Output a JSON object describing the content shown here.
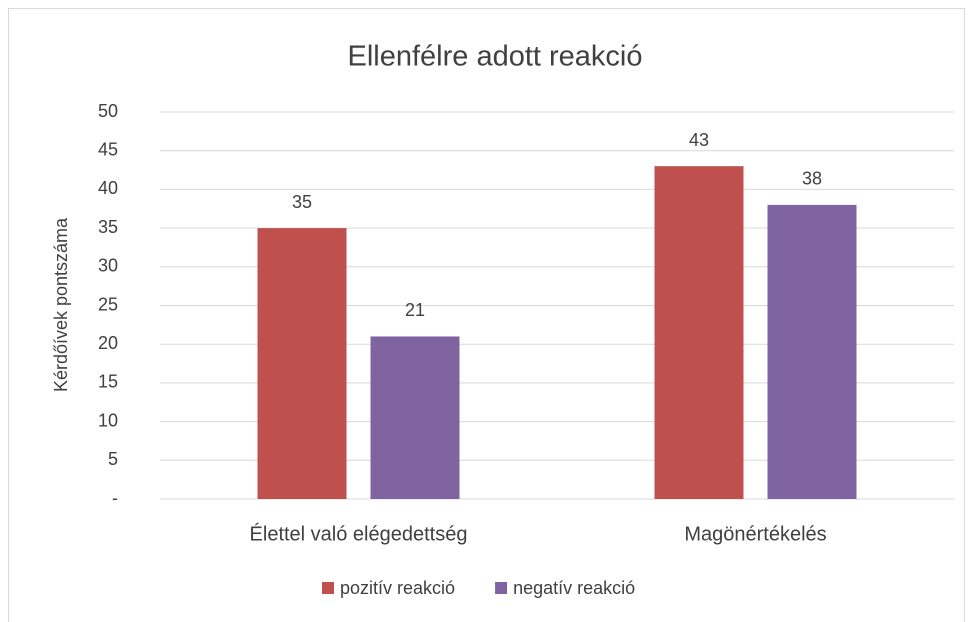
{
  "chart_data": {
    "type": "bar",
    "title": "Ellenfélre adott reakció",
    "y_label": "Kérdőívek pontszáma",
    "categories": [
      "Élettel való elégedettség",
      "Magönértékelés"
    ],
    "series": [
      {
        "name": "pozitív reakció",
        "color": "#c0504d",
        "values": [
          35,
          43
        ]
      },
      {
        "name": "negatív reakció",
        "color": "#8064a2",
        "values": [
          21,
          38
        ]
      }
    ],
    "ylim": [
      0,
      50
    ],
    "yticks": [
      {
        "value": 0,
        "label": "-"
      },
      5,
      10,
      15,
      20,
      25,
      30,
      35,
      40,
      45,
      50
    ],
    "grid": true,
    "legend": "bottom"
  }
}
